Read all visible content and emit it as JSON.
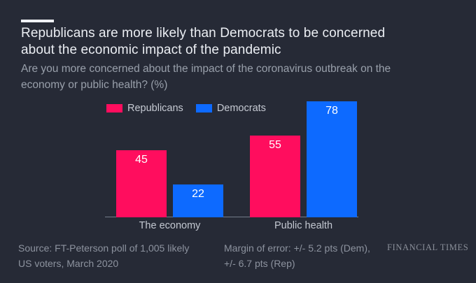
{
  "colors": {
    "background": "#262a36",
    "axis": "#747c8a",
    "republican_pink": "#ff0d5e",
    "democrat_blue": "#0d6aff"
  },
  "chart_data": {
    "type": "bar",
    "title": "Republicans are more likely than Democrats to be concerned\nabout the economic impact of the pandemic",
    "subtitle": "Are you more concerned about the impact of the coronavirus outbreak on the\neconomy or public health? (%)",
    "categories": [
      "The economy",
      "Public health"
    ],
    "series": [
      {
        "name": "Republicans",
        "color": "#ff0d5e",
        "values": [
          45,
          55
        ]
      },
      {
        "name": "Democrats",
        "color": "#0d6aff",
        "values": [
          22,
          78
        ]
      }
    ],
    "xlabel": "",
    "ylabel": "",
    "ylim": [
      0,
      80
    ],
    "grid": false,
    "value_labels": true,
    "legend_position": "top-left"
  },
  "footer": {
    "source": "Source: FT-Peterson poll of 1,005 likely\nUS voters, March 2020",
    "margin_of_error": "Margin of error: +/- 5.2 pts (Dem),\n+/- 6.7 pts (Rep)",
    "brand": "FINANCIAL TIMES"
  }
}
